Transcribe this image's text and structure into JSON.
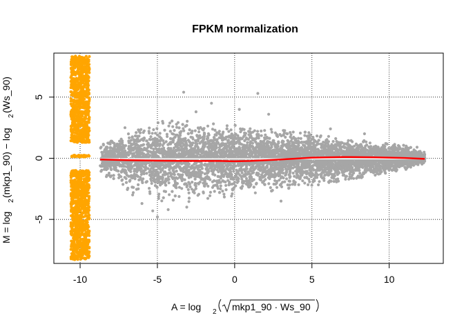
{
  "chart_data": {
    "type": "scatter",
    "title": "FPKM normalization",
    "xlabel": {
      "prefix": "A = log",
      "sub": "2",
      "inner": "mkp1_90 · Ws_90"
    },
    "ylabel": {
      "p1": "M = log",
      "s1": "2",
      "p2": "(mkp1_90) − log",
      "s2": "2",
      "p3": "(Ws_90)"
    },
    "xlim": [
      -11.7,
      13.5
    ],
    "ylim": [
      -8.6,
      8.6
    ],
    "x_ticks": [
      -10,
      -5,
      0,
      5,
      10
    ],
    "y_ticks": [
      -5,
      0,
      5
    ],
    "x_tick_labels": [
      "-10",
      "-5",
      "0",
      "5",
      "10"
    ],
    "y_tick_labels": [
      "-5",
      "0",
      "5"
    ],
    "grid": true,
    "grid_x": [
      -10,
      -5,
      0,
      5,
      10
    ],
    "grid_y": [
      -5,
      0,
      5
    ],
    "colors": {
      "gray_points": "#a6a6a6",
      "orange_points": "#ffa500",
      "loess_line": "#ff0000",
      "white_line": "#ffffff"
    },
    "series": [
      {
        "kind": "points",
        "color": "#a6a6a6",
        "envelope_x": [
          -8.5,
          -7,
          -5,
          -3,
          -1,
          1,
          3,
          5,
          7,
          9,
          11,
          12
        ],
        "envelope_upper": [
          1.3,
          2.2,
          3.0,
          3.0,
          2.7,
          2.5,
          2.2,
          2.0,
          1.6,
          1.3,
          1.0,
          0.6
        ],
        "envelope_lower": [
          -1.3,
          -2.5,
          -3.5,
          -3.5,
          -3.2,
          -2.9,
          -2.6,
          -2.2,
          -1.8,
          -1.4,
          -0.9,
          -0.5
        ],
        "outliers": [
          [
            -3.3,
            5.4
          ],
          [
            1.5,
            5.3
          ],
          [
            -1.5,
            4.5
          ],
          [
            -5.0,
            -4.8
          ],
          [
            -4.3,
            -4.2
          ],
          [
            -3.1,
            -4.0
          ],
          [
            3.0,
            -3.5
          ],
          [
            -6.0,
            -3.7
          ],
          [
            -5.3,
            -4.3
          ],
          [
            0.3,
            4.0
          ],
          [
            -2.5,
            3.8
          ],
          [
            2.2,
            3.6
          ],
          [
            -7.1,
            2.5
          ],
          [
            -8.0,
            1.4
          ],
          [
            -8.3,
            -1.5
          ],
          [
            11.1,
            1.0
          ],
          [
            11.8,
            0.9
          ],
          [
            6.2,
            2.4
          ],
          [
            8.4,
            2.0
          ],
          [
            -6.6,
            -3.0
          ]
        ]
      },
      {
        "kind": "points",
        "color": "#ffa500",
        "x_range": [
          -10.6,
          -9.4
        ],
        "bands": [
          {
            "y_range": [
              1.3,
              8.4
            ]
          },
          {
            "y_range": [
              -8.3,
              -1.0
            ]
          },
          {
            "y_range": [
              0.1,
              0.25
            ]
          }
        ]
      },
      {
        "kind": "loess",
        "color": "#ff0000",
        "x": [
          -8.7,
          -7,
          -5,
          -3,
          -1,
          0,
          1,
          3,
          5,
          7,
          9,
          11,
          12.3
        ],
        "y": [
          -0.1,
          -0.15,
          -0.2,
          -0.22,
          -0.22,
          -0.25,
          -0.22,
          -0.1,
          0.05,
          0.1,
          0.08,
          0.02,
          -0.05
        ]
      },
      {
        "kind": "line",
        "color": "#ffffff",
        "x": [
          -10.0,
          12.0
        ],
        "y": [
          -0.05,
          -0.05
        ]
      }
    ]
  }
}
